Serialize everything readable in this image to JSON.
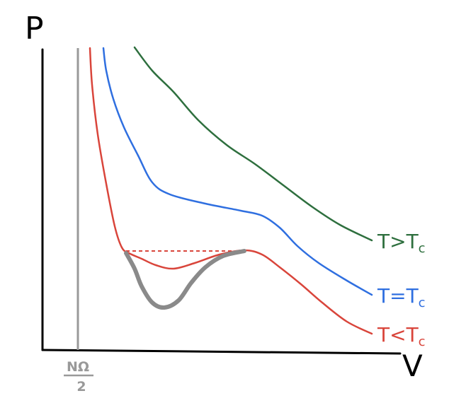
{
  "chart_data": {
    "type": "line",
    "title": "",
    "xlabel": "V",
    "ylabel": "P",
    "x_tick_label": "NΩ/2",
    "x_tick_numerator": "NΩ",
    "x_tick_denominator": "2",
    "grid": false,
    "colors": {
      "axis": "#000000",
      "asymptote": "#999999",
      "unstable": "#8a8a8a"
    },
    "series": [
      {
        "name": "T>Tc",
        "label_main": "T>T",
        "label_sub": "c",
        "color": "#2e6f3e",
        "points": [
          [
            190,
            67
          ],
          [
            215,
            100
          ],
          [
            245,
            130
          ],
          [
            280,
            170
          ],
          [
            320,
            205
          ],
          [
            360,
            232
          ],
          [
            400,
            262
          ],
          [
            440,
            292
          ],
          [
            480,
            318
          ],
          [
            525,
            340
          ]
        ]
      },
      {
        "name": "T=Tc",
        "label_main": "T=T",
        "label_sub": "c",
        "color": "#2f6fe0",
        "points": [
          [
            146,
            68
          ],
          [
            150,
            100
          ],
          [
            160,
            140
          ],
          [
            175,
            180
          ],
          [
            195,
            220
          ],
          [
            215,
            258
          ],
          [
            240,
            275
          ],
          [
            290,
            288
          ],
          [
            340,
            298
          ],
          [
            370,
            305
          ],
          [
            395,
            322
          ],
          [
            420,
            348
          ],
          [
            450,
            372
          ],
          [
            490,
            397
          ],
          [
            525,
            417
          ]
        ]
      },
      {
        "name": "T<Tc",
        "label_main": "T<T",
        "label_sub": "c",
        "color": "#d9453b",
        "points": [
          [
            127,
            68
          ],
          [
            130,
            120
          ],
          [
            138,
            190
          ],
          [
            150,
            260
          ],
          [
            162,
            320
          ],
          [
            172,
            350
          ],
          [
            182,
            358
          ],
          [
            200,
            366
          ],
          [
            220,
            375
          ],
          [
            245,
            380
          ],
          [
            275,
            372
          ],
          [
            310,
            360
          ],
          [
            345,
            354
          ],
          [
            370,
            360
          ],
          [
            395,
            378
          ],
          [
            425,
            402
          ],
          [
            455,
            428
          ],
          [
            490,
            455
          ],
          [
            525,
            472
          ]
        ]
      }
    ],
    "tie_line": {
      "x0": 178,
      "x1": 345,
      "y": 355,
      "color": "#d9453b"
    },
    "unstable_segment": [
      [
        178,
        358
      ],
      [
        190,
        380
      ],
      [
        200,
        405
      ],
      [
        215,
        428
      ],
      [
        232,
        435
      ],
      [
        252,
        425
      ],
      [
        270,
        400
      ],
      [
        290,
        378
      ],
      [
        315,
        362
      ],
      [
        345,
        355
      ]
    ]
  }
}
